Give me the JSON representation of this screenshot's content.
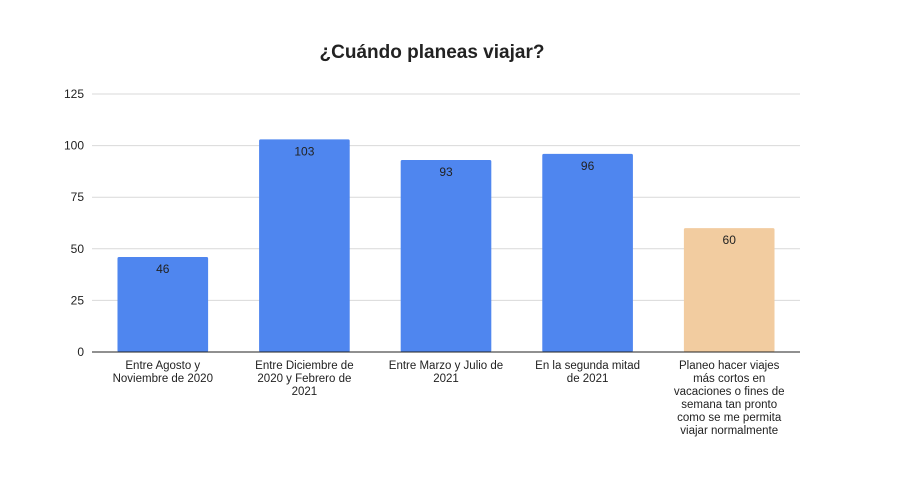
{
  "chart_data": {
    "type": "bar",
    "title": "¿Cuándo planeas viajar?",
    "xlabel": "",
    "ylabel": "",
    "ylim": [
      0,
      125
    ],
    "yticks": [
      0,
      25,
      50,
      75,
      100,
      125
    ],
    "grid": true,
    "legend": "none",
    "categories": [
      [
        "Entre Agosto y",
        "Noviembre de 2020"
      ],
      [
        "Entre Diciembre de",
        "2020 y Febrero de",
        "2021"
      ],
      [
        "Entre Marzo y Julio de",
        "2021"
      ],
      [
        "En la segunda mitad",
        "de 2021"
      ],
      [
        "Planeo hacer viajes",
        "más cortos en",
        "vacaciones o fines de",
        "semana tan pronto",
        "como se me permita",
        "viajar normalmente"
      ]
    ],
    "values": [
      46,
      103,
      93,
      96,
      60
    ],
    "data_labels": [
      "46",
      "103",
      "93",
      "96",
      "60"
    ],
    "bar_colors": [
      "#4f86ef",
      "#4f86ef",
      "#4f86ef",
      "#4f86ef",
      "#f2cca0"
    ],
    "data_label_colors": [
      "#ffffff",
      "#ffffff",
      "#ffffff",
      "#ffffff",
      "#222222"
    ],
    "gridline_color": "#d9d9d9",
    "axis_color": "#222222"
  }
}
